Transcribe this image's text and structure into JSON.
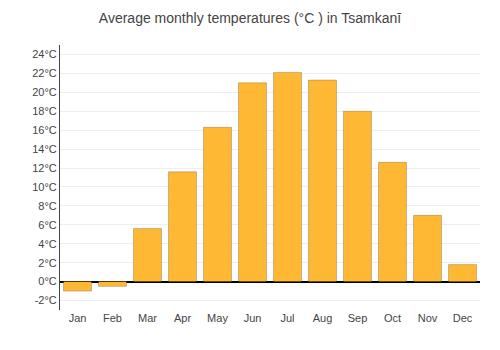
{
  "chart_data": {
    "type": "bar",
    "title": "Average monthly temperatures (°C ) in Tsamkanī",
    "categories": [
      "Jan",
      "Feb",
      "Mar",
      "Apr",
      "May",
      "Jun",
      "Jul",
      "Aug",
      "Sep",
      "Oct",
      "Nov",
      "Dec"
    ],
    "values": [
      -1.0,
      -0.5,
      5.6,
      11.6,
      16.3,
      21.0,
      22.1,
      21.3,
      18.0,
      12.6,
      7.0,
      1.8
    ],
    "color": "#FFB833",
    "ylim": [
      -3,
      25
    ],
    "yticks": [
      {
        "value": -2,
        "label": "-2°C"
      },
      {
        "value": 0,
        "label": "0°C"
      },
      {
        "value": 2,
        "label": "2°C"
      },
      {
        "value": 4,
        "label": "4°C"
      },
      {
        "value": 6,
        "label": "6°C"
      },
      {
        "value": 8,
        "label": "8°C"
      },
      {
        "value": 10,
        "label": "10°C"
      },
      {
        "value": 12,
        "label": "12°C"
      },
      {
        "value": 14,
        "label": "14°C"
      },
      {
        "value": 16,
        "label": "16°C"
      },
      {
        "value": 18,
        "label": "18°C"
      },
      {
        "value": 20,
        "label": "20°C"
      },
      {
        "value": 22,
        "label": "22°C"
      },
      {
        "value": 24,
        "label": "24°C"
      }
    ],
    "grid": true
  }
}
